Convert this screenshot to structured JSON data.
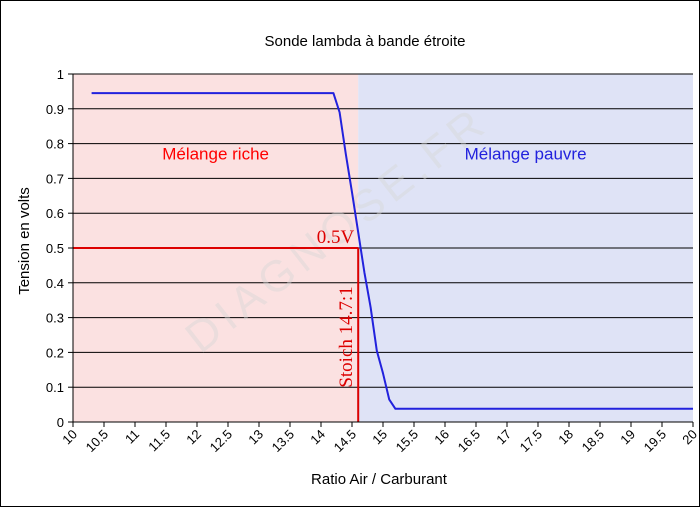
{
  "chart_data": {
    "type": "line",
    "title": "Sonde lambda à bande étroite",
    "xlabel": "Ratio Air / Carburant",
    "ylabel": "Tension en volts",
    "xlim": [
      10,
      20
    ],
    "ylim": [
      0,
      1
    ],
    "x_ticks": [
      "10",
      "10.5",
      "11",
      "11.5",
      "12",
      "12.5",
      "13",
      "13.5",
      "14",
      "14.5",
      "15",
      "15.5",
      "16",
      "16.5",
      "17",
      "17.5",
      "18",
      "18.5",
      "19",
      "19.5",
      "20"
    ],
    "y_ticks": [
      "0",
      "0.1",
      "0.2",
      "0.3",
      "0.4",
      "0.5",
      "0.6",
      "0.7",
      "0.8",
      "0.9",
      "1"
    ],
    "grid": "horizontal",
    "regions": [
      {
        "label": "Mélange riche",
        "x_range": [
          10,
          14.6
        ],
        "color": "#fbe1e1",
        "label_color": "#ff0000"
      },
      {
        "label": "Mélange pauvre",
        "x_range": [
          14.6,
          20
        ],
        "color": "#dfe3f6",
        "label_color": "#2222dd"
      }
    ],
    "series": [
      {
        "color": "#2222dd",
        "x": [
          10.3,
          14.2,
          14.3,
          14.4,
          14.5,
          14.6,
          14.7,
          14.8,
          14.9,
          15.0,
          15.1,
          15.2,
          15.3,
          20.0
        ],
        "y": [
          0.945,
          0.945,
          0.89,
          0.77,
          0.66,
          0.545,
          0.43,
          0.33,
          0.205,
          0.14,
          0.065,
          0.038,
          0.038,
          0.038
        ]
      }
    ],
    "annotations": {
      "voltage_label": "0.5V",
      "stoich_label": "Stoich 14.7:1",
      "stoich_x": 14.6,
      "voltage_y": 0.5,
      "color": "#dd0000"
    },
    "watermark": "DIAGNOSE.FR"
  }
}
